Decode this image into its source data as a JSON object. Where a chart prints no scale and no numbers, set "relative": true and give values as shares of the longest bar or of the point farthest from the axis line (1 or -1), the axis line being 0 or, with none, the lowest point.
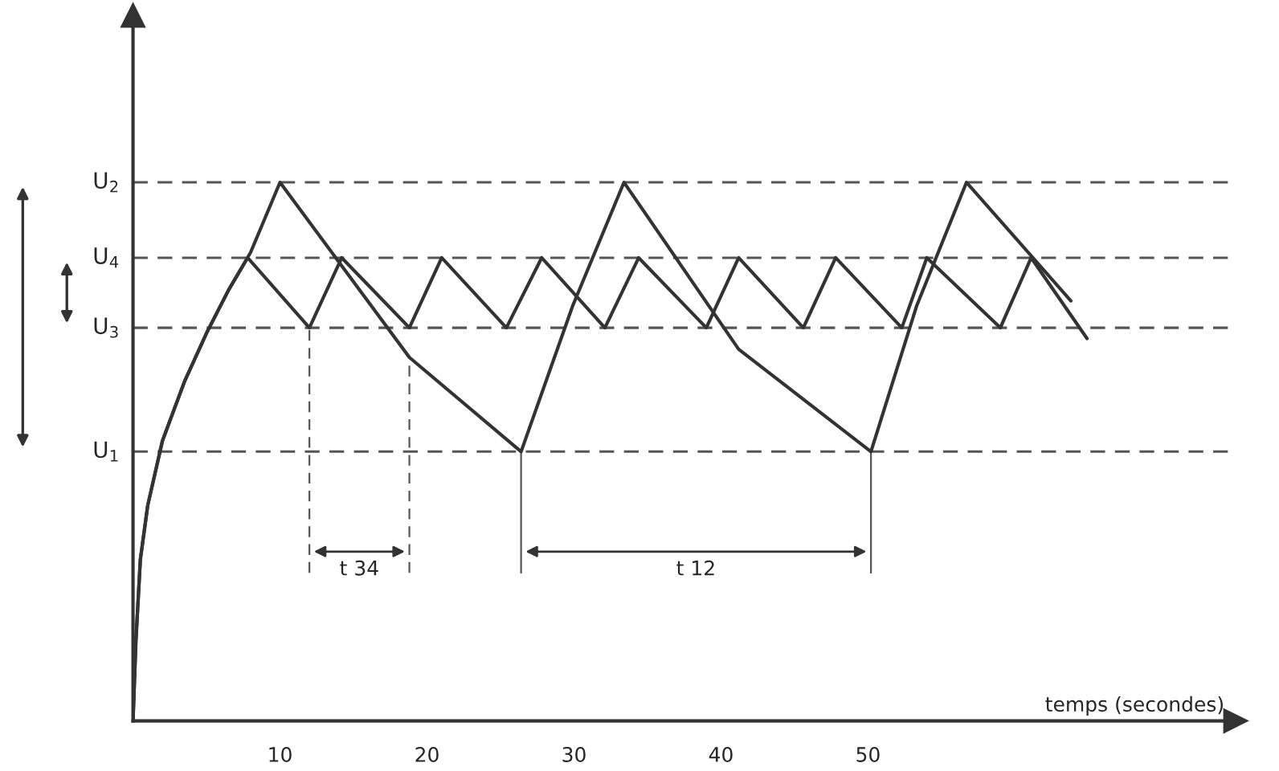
{
  "chart_data": {
    "type": "line",
    "relative": true,
    "xlabel": "temps (secondes)",
    "xlim": [
      0,
      75
    ],
    "xticks": [
      10,
      20,
      30,
      40,
      50
    ],
    "tick_labels": "x",
    "grid": false,
    "legend": false,
    "line_style": "solid",
    "marker": "none",
    "series": [
      {
        "color": "#333333",
        "x": [
          0,
          0.2,
          0.5,
          1,
          2,
          3.5,
          5,
          6.5,
          8,
          10,
          18.8,
          26.4,
          29.9,
          33.4,
          41.2,
          50.2,
          53.3,
          56.7,
          63.8
        ],
        "values": [
          0,
          0.15,
          0.3,
          0.4,
          0.52,
          0.63,
          0.72,
          0.8,
          0.87,
          1,
          0.675,
          0.5,
          0.77,
          1,
          0.69,
          0.5,
          0.77,
          1,
          0.78
        ]
      },
      {
        "color": "#333333",
        "x": [
          0,
          0.2,
          0.5,
          1,
          2,
          3.5,
          5,
          6.5,
          7.8,
          12.0,
          14.2,
          18.8,
          21.0,
          25.4,
          27.8,
          32.1,
          34.4,
          39.0,
          41.2,
          45.6,
          47.8,
          52.3,
          54.0,
          59.0,
          61.1,
          64.9
        ],
        "values": [
          0,
          0.15,
          0.3,
          0.4,
          0.52,
          0.63,
          0.72,
          0.8,
          0.86,
          0.73,
          0.86,
          0.73,
          0.86,
          0.73,
          0.86,
          0.73,
          0.86,
          0.73,
          0.86,
          0.73,
          0.86,
          0.73,
          0.86,
          0.73,
          0.86,
          0.71
        ]
      }
    ],
    "ref_lines": [
      {
        "axis": "y",
        "value": 1,
        "label": "U$_{2}$",
        "color": "#555555",
        "line_style": "dashed"
      },
      {
        "axis": "y",
        "value": 0.5,
        "label": "U$_{1}$",
        "color": "#555555",
        "line_style": "dashed"
      },
      {
        "axis": "y",
        "value": 0.86,
        "label": "U$_{4}$",
        "color": "#555555",
        "line_style": "dashed"
      },
      {
        "axis": "y",
        "value": 0.73,
        "label": "U$_{3}$",
        "color": "#555555",
        "line_style": "dashed"
      },
      {
        "axis": "x",
        "value": 12.0,
        "color": "#555555",
        "line_style": "dashed"
      },
      {
        "axis": "x",
        "value": 18.8,
        "color": "#555555",
        "line_style": "dashed"
      },
      {
        "axis": "x",
        "value": 26.4,
        "color": "#555555",
        "line_style": "solid"
      },
      {
        "axis": "x",
        "value": 50.2,
        "color": "#555555",
        "line_style": "solid"
      }
    ],
    "annotations": [
      "t 34",
      "t 12"
    ]
  }
}
